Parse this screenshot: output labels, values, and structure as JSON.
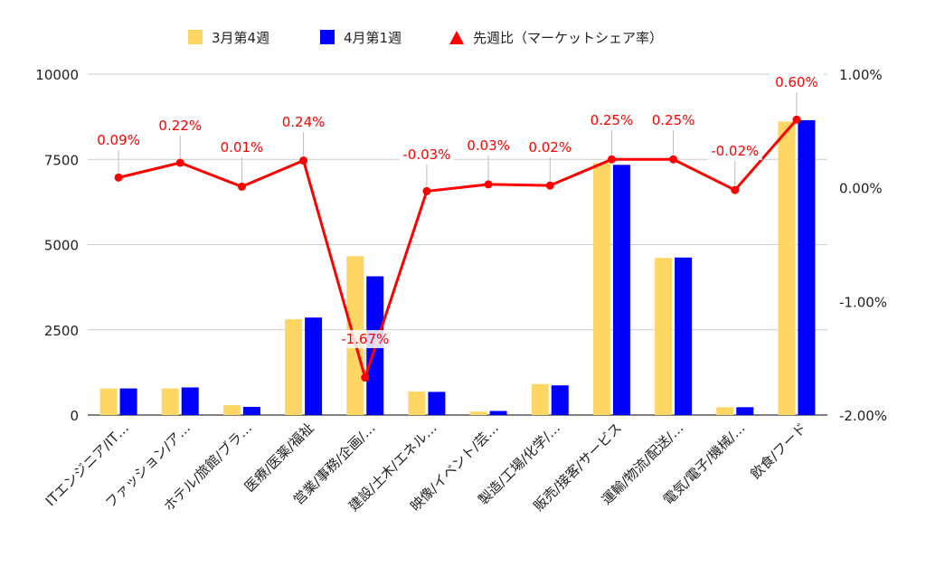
{
  "chart_data": {
    "type": "bar",
    "categories": [
      "ITエンジニア/IT…",
      "ファッション/ア…",
      "ホテル/旅館/ブラ…",
      "医療/医薬/福祉",
      "営業/事務/企画/…",
      "建設/土木/エネル…",
      "映像/イベント/芸…",
      "製造/工場/化学/…",
      "販売/接客/サービス",
      "運輸/物流/配送/…",
      "電気/電子/機械/…",
      "飲食/フード"
    ],
    "series": [
      {
        "name": "3月第4週",
        "color": "#fdd663",
        "values": [
          780,
          780,
          290,
          2810,
          4660,
          690,
          100,
          910,
          7390,
          4610,
          230,
          8610
        ]
      },
      {
        "name": "4月第1週",
        "color": "#0000ff",
        "values": [
          780,
          810,
          240,
          2860,
          4070,
          680,
          120,
          870,
          7340,
          4620,
          230,
          8650
        ]
      }
    ],
    "line_series": {
      "name": "先週比（マーケットシェア率）",
      "color": "#ff0000",
      "values": [
        0.09,
        0.22,
        0.01,
        0.24,
        -1.67,
        -0.03,
        0.03,
        0.02,
        0.25,
        0.25,
        -0.02,
        0.6
      ],
      "labels": [
        "0.09%",
        "0.22%",
        "0.01%",
        "0.24%",
        "-1.67%",
        "-0.03%",
        "0.03%",
        "0.02%",
        "0.25%",
        "0.25%",
        "-0.02%",
        "0.60%"
      ]
    },
    "y_left": {
      "ylim": [
        0,
        10000
      ],
      "ticks": [
        0,
        2500,
        5000,
        7500,
        10000
      ],
      "tick_labels": [
        "0",
        "2500",
        "5000",
        "7500",
        "10000"
      ]
    },
    "y_right": {
      "ylim": [
        -2.0,
        1.0
      ],
      "ticks": [
        -2.0,
        -1.0,
        0.0,
        1.0
      ],
      "tick_labels": [
        "-2.00%",
        "-1.00%",
        "0.00%",
        "1.00%"
      ]
    },
    "legend_position": "top",
    "grid": true
  }
}
